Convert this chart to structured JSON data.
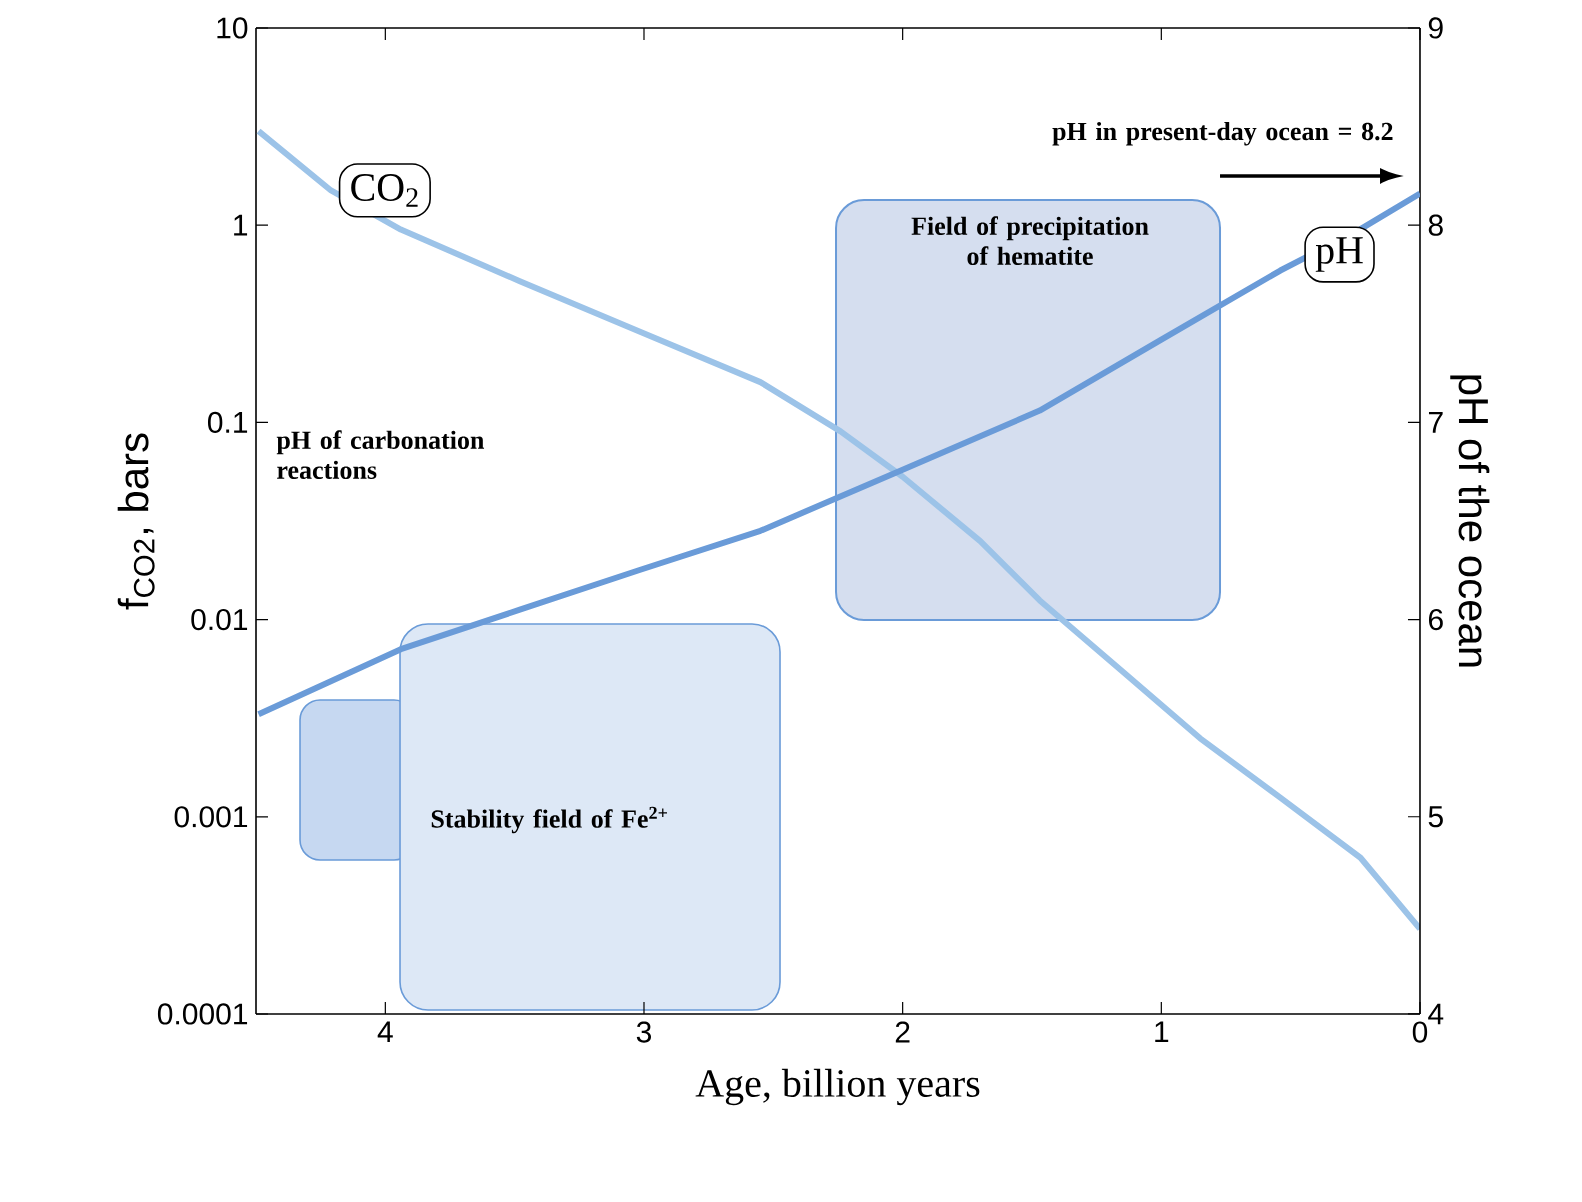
{
  "chart_data": {
    "type": "line",
    "xlabel": "Age, billion years",
    "ylabel": "f$_{CO2}$, bars",
    "y2label": "pH of the ocean",
    "xlim": [
      4.5,
      0
    ],
    "xticks": [
      4,
      3,
      2,
      1,
      0
    ],
    "ylim": [
      0.0001,
      10
    ],
    "yticks": [
      0.0001,
      0.001,
      0.01,
      0.1,
      1,
      10
    ],
    "y2lim": [
      4,
      9
    ],
    "y2ticks": [
      4,
      5,
      6,
      7,
      8,
      9
    ],
    "log": "y",
    "marker": "none",
    "series": [
      {
        "name": "CO$_{2}$",
        "color": "#9cc3e8",
        "x": [
          4.49,
          4.21,
          3.94,
          3.48,
          3.02,
          2.55,
          2.24,
          2.0,
          1.7,
          1.47,
          1.16,
          0.85,
          0.54,
          0.23,
          0
        ],
        "values": [
          3.0,
          1.5,
          0.95,
          0.52,
          0.29,
          0.16,
          0.09,
          0.053,
          0.025,
          0.0125,
          0.0056,
          0.0025,
          0.00125,
          0.00062,
          0.00027
        ]
      },
      {
        "name": "pH",
        "color": "#6a9bd8",
        "axis": "y2",
        "x": [
          4.49,
          3.94,
          3.48,
          3.02,
          2.55,
          2.0,
          1.47,
          1.0,
          0.54,
          0.23,
          0
        ],
        "values": [
          5.52,
          5.85,
          6.05,
          6.25,
          6.45,
          6.76,
          7.06,
          7.42,
          7.77,
          7.98,
          8.16
        ]
      }
    ],
    "annotations": [
      "pH of carbonation reactions",
      "Stability field of Fe$^{2+}$",
      "Field of precipitation of hematite",
      "pH in present-day ocean = 8.2"
    ]
  }
}
